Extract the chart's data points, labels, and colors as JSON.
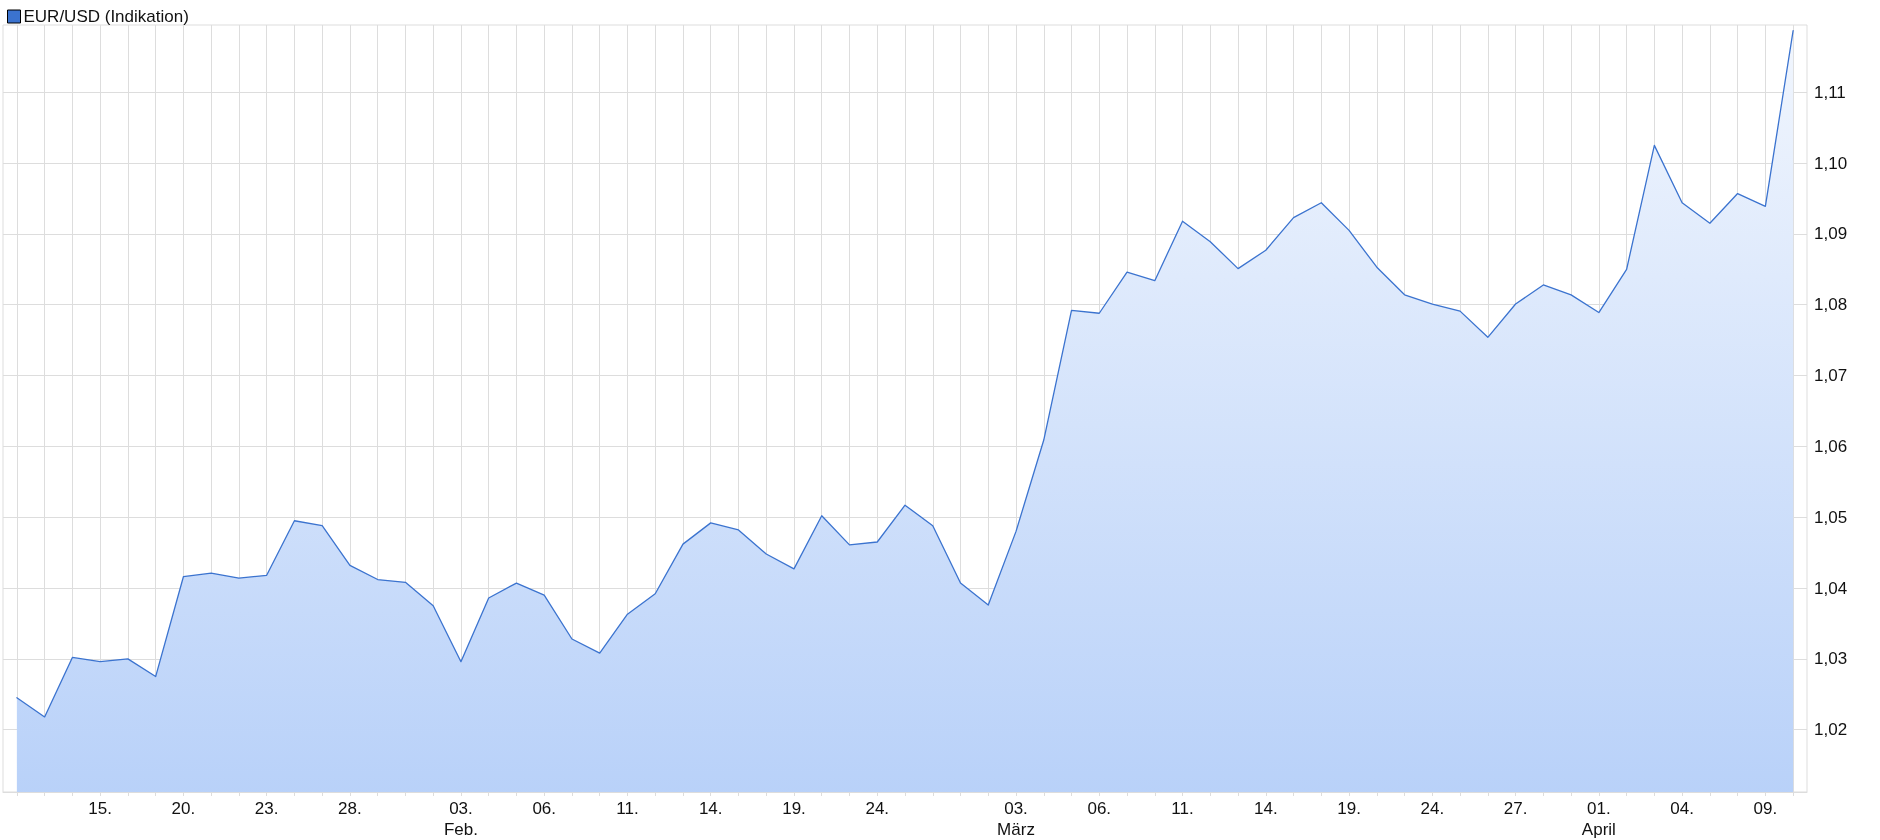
{
  "chart_data": {
    "type": "area",
    "categories": [
      null,
      null,
      null,
      "15.",
      null,
      null,
      "20.",
      null,
      null,
      "23.",
      null,
      null,
      "28.",
      null,
      null,
      null,
      "03.\nFeb.",
      null,
      null,
      "06.",
      null,
      null,
      "11.",
      null,
      null,
      "14.",
      null,
      null,
      "19.",
      null,
      null,
      "24.",
      null,
      null,
      null,
      null,
      "03.\nMärz",
      null,
      null,
      "06.",
      null,
      null,
      "11.",
      null,
      null,
      "14.",
      null,
      null,
      "19.",
      null,
      null,
      "24.",
      null,
      null,
      "27.",
      null,
      null,
      "01.\nApril",
      null,
      null,
      "04.",
      null,
      null,
      "09.",
      null
    ],
    "series": [
      {
        "name": "EUR/USD (Indikation)",
        "color": "#3b73cf",
        "values": [
          1.0245,
          1.0218,
          1.0302,
          1.0296,
          1.03,
          1.0275,
          1.0416,
          1.0421,
          1.0414,
          1.0418,
          1.0495,
          1.0488,
          1.0432,
          1.0412,
          1.0408,
          1.0375,
          1.0296,
          1.0386,
          1.0407,
          1.039,
          1.0328,
          1.0308,
          1.0363,
          1.0392,
          1.0462,
          1.0492,
          1.0482,
          1.0448,
          1.0427,
          1.0502,
          1.0461,
          1.0465,
          1.0517,
          1.0488,
          1.0407,
          1.0376,
          1.048,
          1.0609,
          1.0792,
          1.0788,
          1.0846,
          1.0834,
          1.0918,
          1.0889,
          1.0851,
          1.0877,
          1.0923,
          1.0944,
          1.0905,
          1.0853,
          1.0814,
          1.0801,
          1.0791,
          1.0754,
          1.0801,
          1.0828,
          1.0814,
          1.0789,
          1.085,
          1.1025,
          1.0944,
          1.0915,
          1.0957,
          1.0939,
          1.1187
        ]
      }
    ],
    "ylim": [
      1.0112,
      1.1195
    ],
    "yticks": [
      {
        "value": 1.02,
        "label": "1,02"
      },
      {
        "value": 1.03,
        "label": "1,03"
      },
      {
        "value": 1.04,
        "label": "1,04"
      },
      {
        "value": 1.05,
        "label": "1,05"
      },
      {
        "value": 1.06,
        "label": "1,06"
      },
      {
        "value": 1.07,
        "label": "1,07"
      },
      {
        "value": 1.08,
        "label": "1,08"
      },
      {
        "value": 1.09,
        "label": "1,09"
      },
      {
        "value": 1.1,
        "label": "1,10"
      },
      {
        "value": 1.11,
        "label": "1,11"
      }
    ],
    "grid": true,
    "legend": "top left"
  }
}
